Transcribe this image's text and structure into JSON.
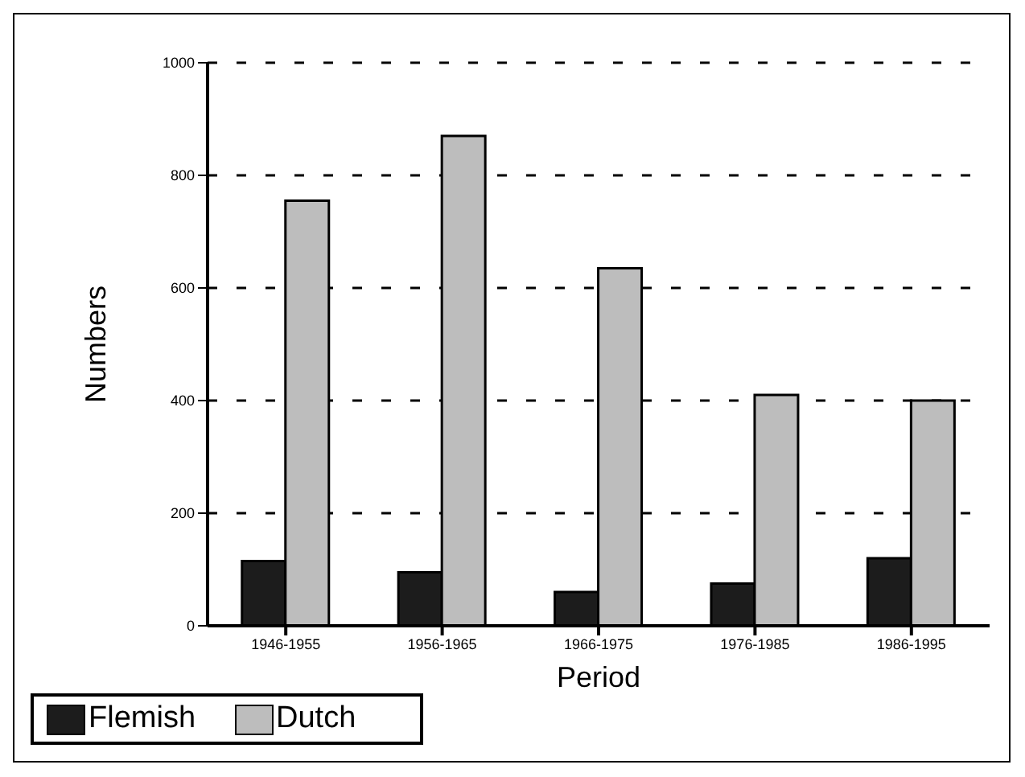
{
  "chart_data": {
    "type": "bar",
    "xlabel": "Period",
    "ylabel": "Numbers",
    "categories": [
      "1946-1955",
      "1956-1965",
      "1966-1975",
      "1976-1985",
      "1986-1995"
    ],
    "series": [
      {
        "name": "Flemish",
        "color": "#1c1c1c",
        "values": [
          115,
          95,
          60,
          75,
          120
        ]
      },
      {
        "name": "Dutch",
        "color": "#bdbdbd",
        "values": [
          755,
          870,
          635,
          410,
          400
        ]
      }
    ],
    "ylim": [
      0,
      1000
    ],
    "yticks": [
      0,
      200,
      400,
      600,
      800,
      1000
    ],
    "grid": "y",
    "legend": "bottom"
  }
}
